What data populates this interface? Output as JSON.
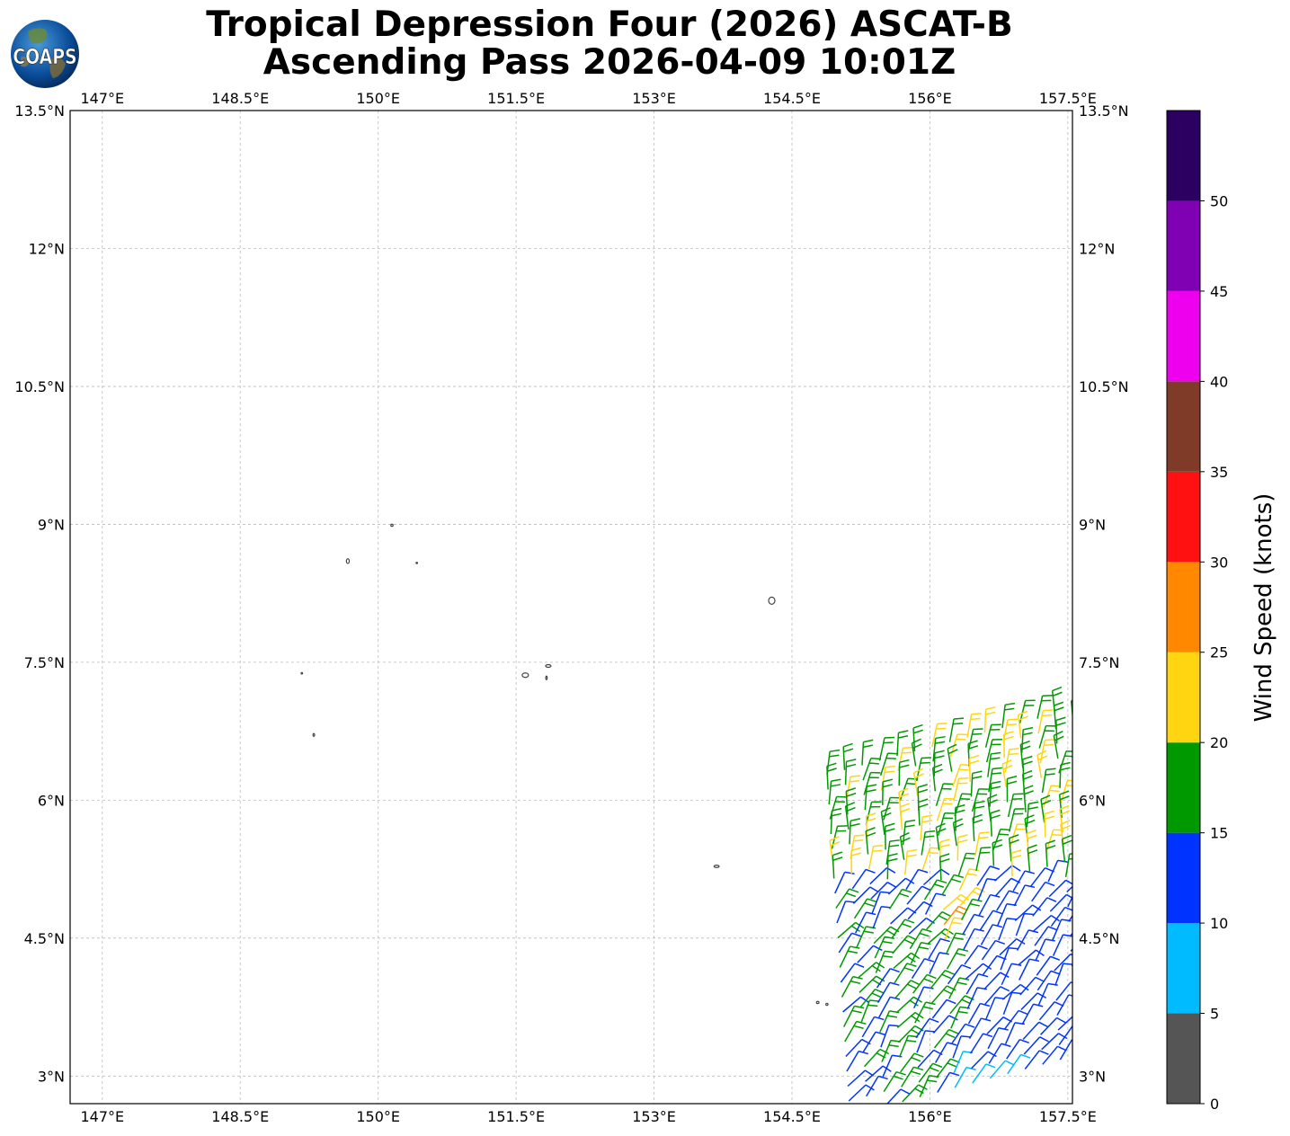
{
  "title_line1": "Tropical Depression Four (2026) ASCAT-B",
  "title_line2": "Ascending Pass 2026-04-09 10:01Z",
  "logo": {
    "text": "COAPS",
    "icon": "globe-logo"
  },
  "map": {
    "lon_range": [
      146.65,
      157.55
    ],
    "lat_range": [
      2.7,
      13.5
    ],
    "lon_ticks": [
      "147°E",
      "148.5°E",
      "150°E",
      "151.5°E",
      "153°E",
      "154.5°E",
      "156°E",
      "157.5°E"
    ],
    "lat_ticks": [
      "13.5°N",
      "12°N",
      "10.5°N",
      "9°N",
      "7.5°N",
      "6°N",
      "4.5°N",
      "3°N"
    ],
    "land_color": "#444444",
    "grid": true
  },
  "colorbar": {
    "label": "Wind Speed (knots)",
    "ticks": [
      "0",
      "5",
      "10",
      "15",
      "20",
      "25",
      "30",
      "35",
      "40",
      "45",
      "50"
    ],
    "bins": [
      {
        "min": 0,
        "max": 5,
        "color": "#555555"
      },
      {
        "min": 5,
        "max": 10,
        "color": "#00bbff"
      },
      {
        "min": 10,
        "max": 15,
        "color": "#0033ff"
      },
      {
        "min": 15,
        "max": 20,
        "color": "#009900"
      },
      {
        "min": 20,
        "max": 25,
        "color": "#ffd511"
      },
      {
        "min": 25,
        "max": 30,
        "color": "#ff8800"
      },
      {
        "min": 30,
        "max": 35,
        "color": "#ff1111"
      },
      {
        "min": 35,
        "max": 40,
        "color": "#7f3a28"
      },
      {
        "min": 40,
        "max": 45,
        "color": "#ee00ee"
      },
      {
        "min": 45,
        "max": 50,
        "color": "#8000b3"
      },
      {
        "min": 50,
        "max": 55,
        "color": "#2b0060"
      }
    ]
  }
}
